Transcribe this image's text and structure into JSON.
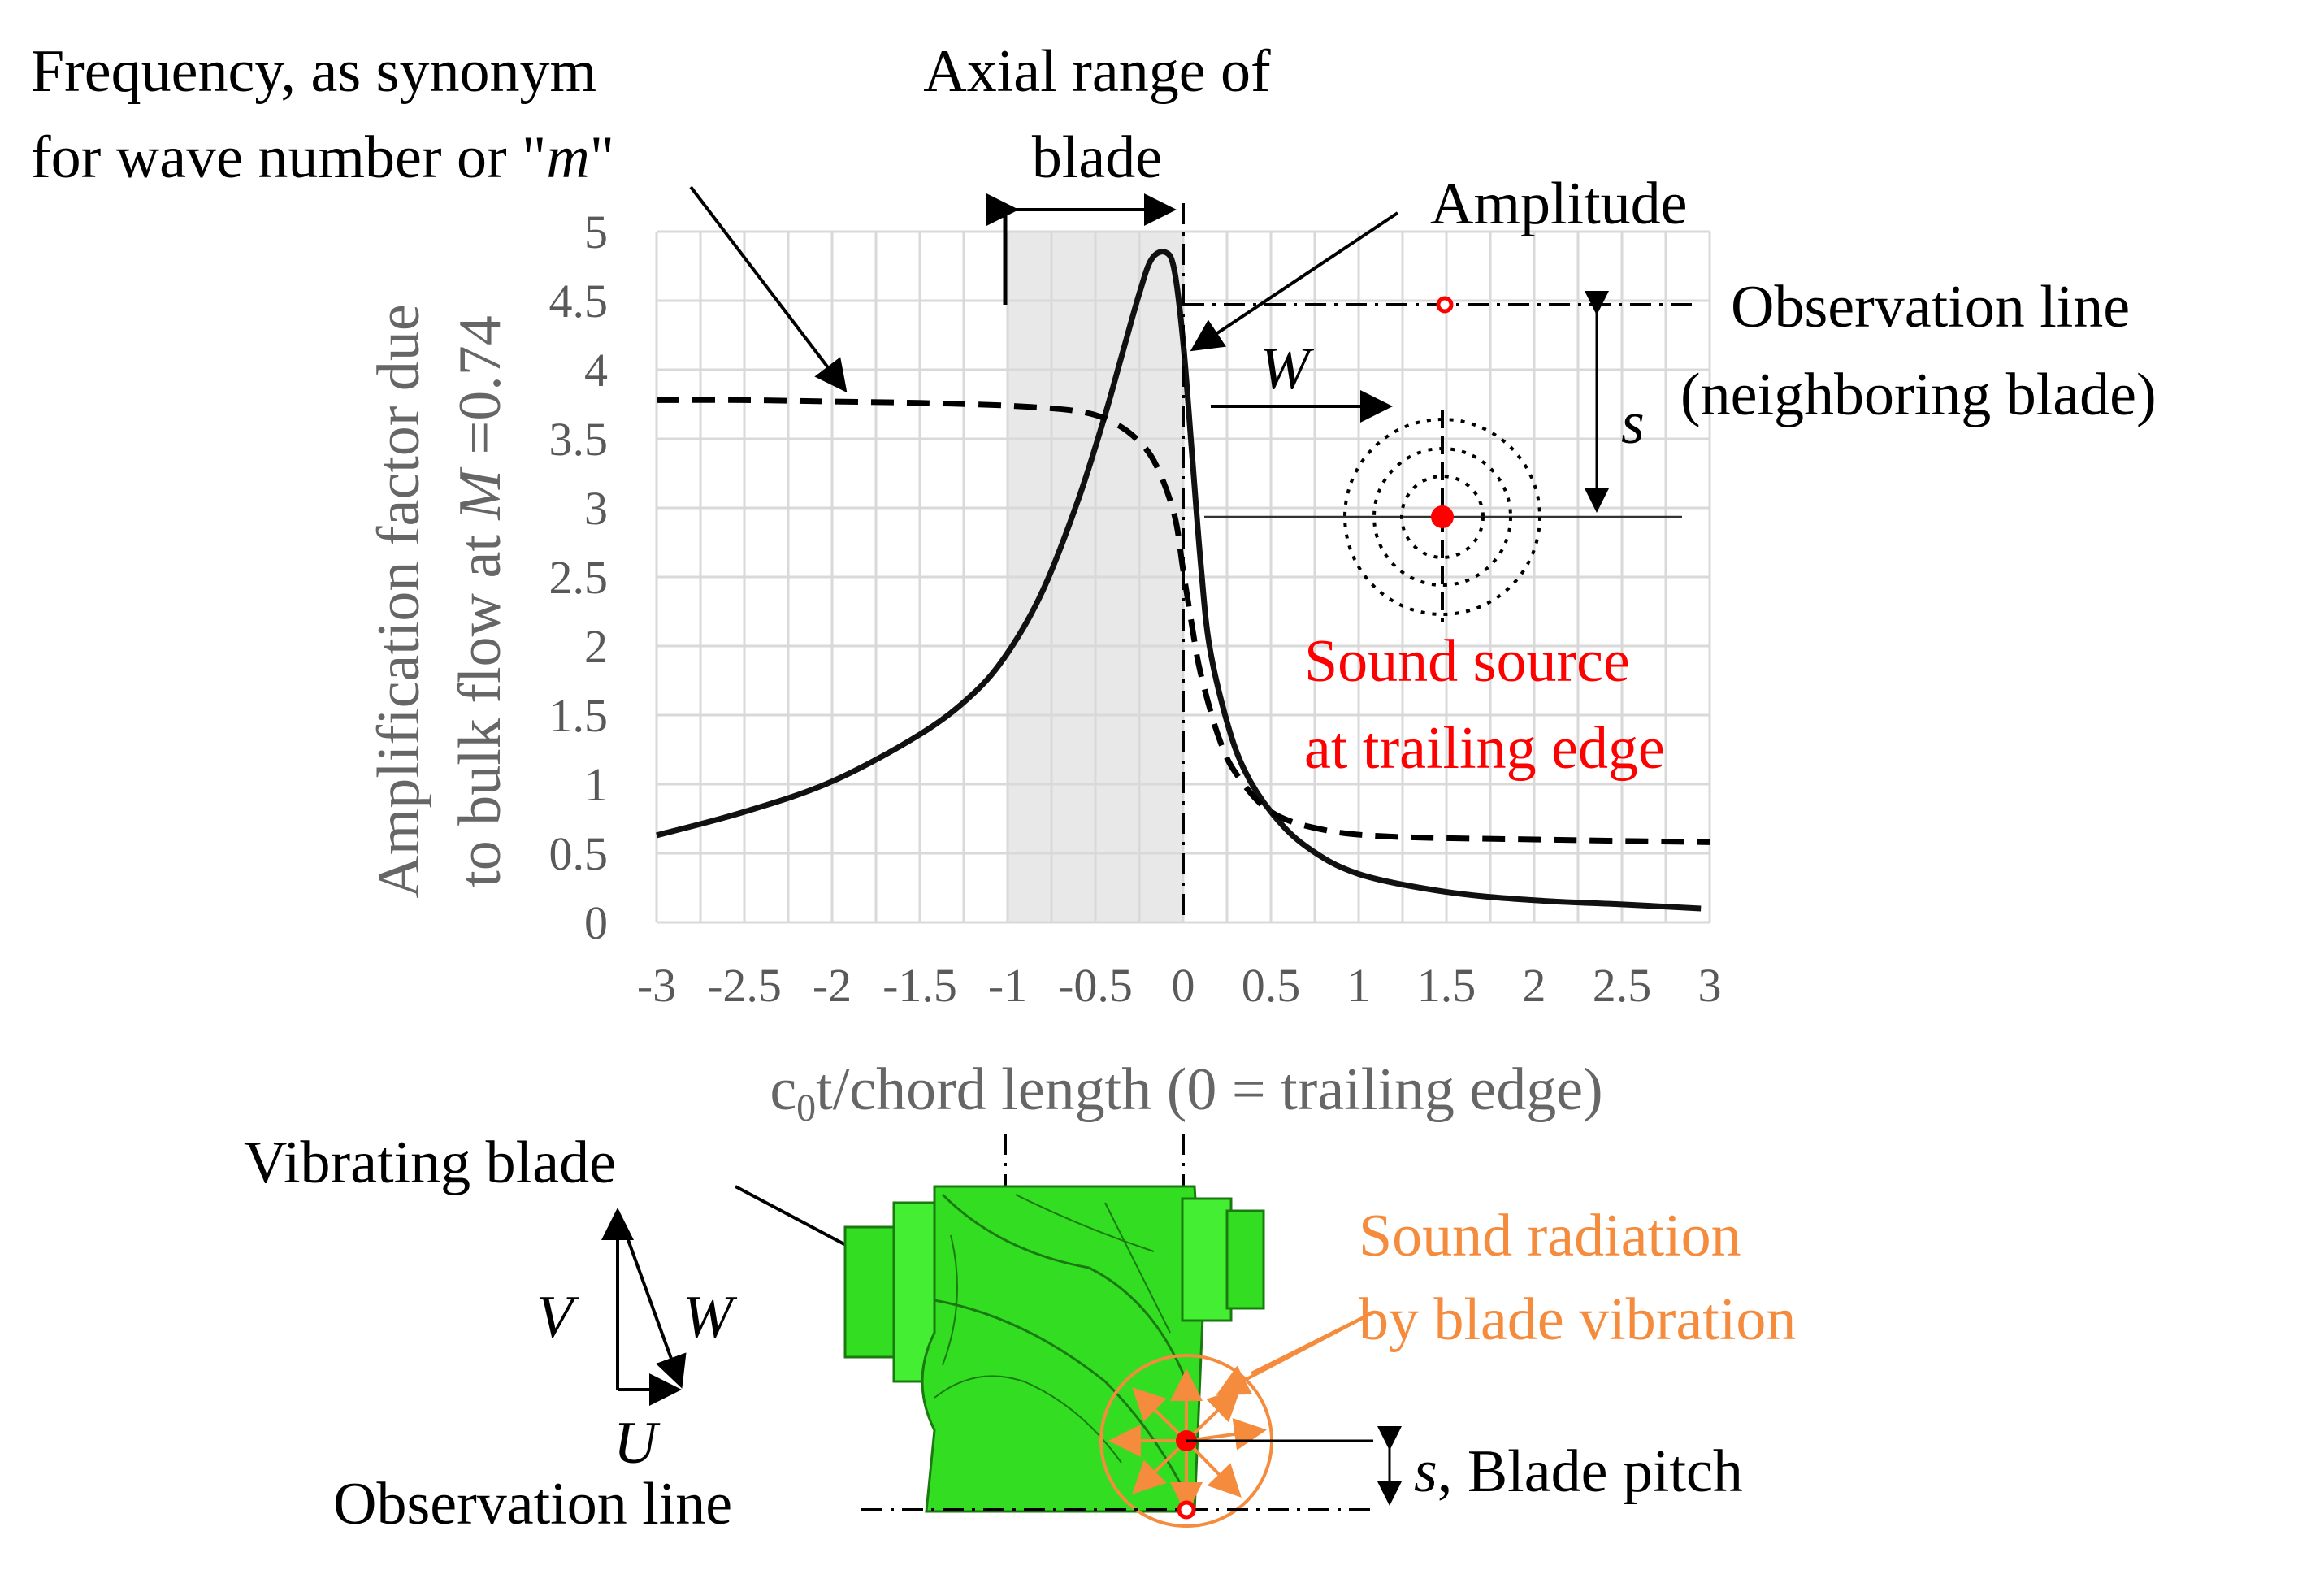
{
  "annotations": {
    "frequency_line1": "Frequency, as synonym",
    "frequency_line2_prefix": "for wave number or \"",
    "frequency_m": "m",
    "frequency_quote": "\"",
    "axial_line1": "Axial range of",
    "axial_line2": "blade",
    "amplitude": "Amplitude",
    "observation_line_1": "Observation line",
    "observation_line_2": "(neighboring blade)",
    "w_symbol": "W",
    "s_symbol": "s",
    "sound_source_1": "Sound source",
    "sound_source_2": "at trailing edge",
    "vibrating_blade": "Vibrating blade",
    "v_symbol": "V",
    "w_symbol_2": "W",
    "u_symbol": "U",
    "observation_line_bottom": "Observation line",
    "sound_radiation_1": "Sound radiation",
    "sound_radiation_2": "by blade vibration",
    "blade_pitch_s": "s",
    "blade_pitch_text": ", Blade pitch"
  },
  "colors": {
    "red": "#ff0000",
    "orange": "#f58b3c",
    "gray_text": "#666666",
    "grid": "#d9d9d9",
    "shade": "#e8e8e8",
    "solid_curve": "#000000",
    "blade_green": "#33dd22"
  },
  "chart_data": {
    "type": "line",
    "xlabel_prefix": "c",
    "xlabel_sub": "0",
    "xlabel_rest": "t/chord length (0 = trailing edge)",
    "ylabel_line1": "Amplification factor due",
    "ylabel_line2_prefix": "to bulk flow at ",
    "ylabel_M": "M",
    "ylabel_line2_suffix": " =0.74",
    "xlim": [
      -3,
      3
    ],
    "ylim": [
      0,
      5
    ],
    "x_ticks": [
      "-3",
      "-2.5",
      "-2",
      "-1.5",
      "-1",
      "-0.5",
      "0",
      "0.5",
      "1",
      "1.5",
      "2",
      "2.5",
      "3"
    ],
    "y_ticks": [
      "0",
      "0.5",
      "1",
      "1.5",
      "2",
      "2.5",
      "3",
      "3.5",
      "4",
      "4.5",
      "5"
    ],
    "x_tick_values": [
      -3,
      -2.5,
      -2,
      -1.5,
      -1,
      -0.5,
      0,
      0.5,
      1,
      1.5,
      2,
      2.5,
      3
    ],
    "y_tick_values": [
      0,
      0.5,
      1,
      1.5,
      2,
      2.5,
      3,
      3.5,
      4,
      4.5,
      5
    ],
    "grid": true,
    "blade_range": [
      -1,
      0
    ],
    "observation_line_y": 4.5,
    "source_point": [
      1.5,
      3
    ],
    "series": [
      {
        "style": "solid",
        "x": [
          -3,
          -2.5,
          -2,
          -1.5,
          -1.2,
          -1,
          -0.8,
          -0.6,
          -0.45,
          -0.35,
          -0.25,
          -0.18,
          -0.1,
          -0.05,
          0,
          0.05,
          0.1,
          0.15,
          0.25,
          0.35,
          0.5,
          0.7,
          1,
          1.5,
          2,
          2.5,
          2.95
        ],
        "y": [
          0.63,
          0.8,
          1.02,
          1.36,
          1.65,
          1.95,
          2.4,
          3.05,
          3.65,
          4.1,
          4.55,
          4.8,
          4.85,
          4.72,
          4.2,
          3.4,
          2.6,
          2.0,
          1.45,
          1.1,
          0.8,
          0.55,
          0.35,
          0.22,
          0.16,
          0.13,
          0.1
        ]
      },
      {
        "style": "dashed",
        "x": [
          -3,
          -2.5,
          -2,
          -1.5,
          -1,
          -0.6,
          -0.4,
          -0.25,
          -0.15,
          -0.05,
          0,
          0.05,
          0.1,
          0.2,
          0.3,
          0.5,
          0.8,
          1.2,
          2,
          3
        ],
        "y": [
          3.78,
          3.78,
          3.77,
          3.76,
          3.74,
          3.7,
          3.62,
          3.48,
          3.3,
          2.95,
          2.55,
          2.15,
          1.8,
          1.35,
          1.08,
          0.8,
          0.67,
          0.62,
          0.6,
          0.58
        ]
      }
    ]
  }
}
